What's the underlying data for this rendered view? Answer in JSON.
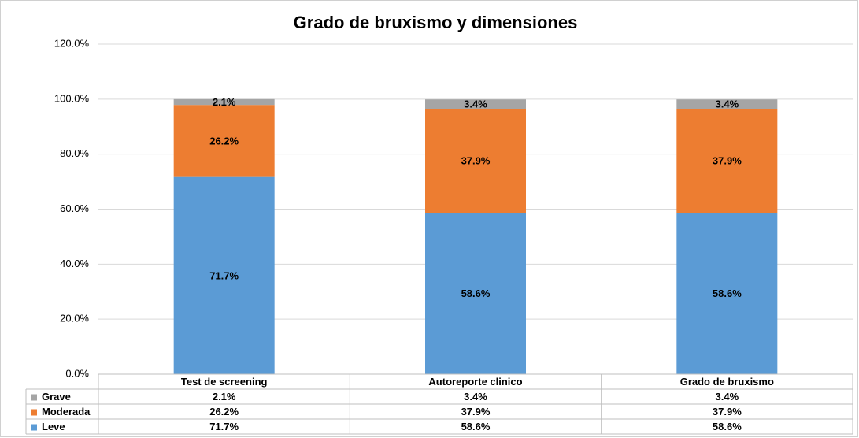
{
  "chart_data": {
    "type": "bar",
    "stacked": true,
    "title": "Grado de bruxismo y dimensiones",
    "categories": [
      "Test de screening",
      "Autoreporte clinico",
      "Grado de bruxismo"
    ],
    "series": [
      {
        "name": "Leve",
        "color": "#5b9bd5",
        "values": [
          71.7,
          58.6,
          58.6
        ],
        "value_labels": [
          "71.7%",
          "58.6%",
          "58.6%"
        ]
      },
      {
        "name": "Moderada",
        "color": "#ed7d31",
        "values": [
          26.2,
          37.9,
          37.9
        ],
        "value_labels": [
          "26.2%",
          "37.9%",
          "37.9%"
        ]
      },
      {
        "name": "Grave",
        "color": "#a5a5a5",
        "values": [
          2.1,
          3.4,
          3.4
        ],
        "value_labels": [
          "2.1%",
          "3.4%",
          "3.4%"
        ]
      }
    ],
    "ylim": [
      0,
      120
    ],
    "yticks": [
      {
        "value": 0,
        "label": "0.0%"
      },
      {
        "value": 20,
        "label": "20.0%"
      },
      {
        "value": 40,
        "label": "40.0%"
      },
      {
        "value": 60,
        "label": "60.0%"
      },
      {
        "value": 80,
        "label": "80.0%"
      },
      {
        "value": 100,
        "label": "100.0%"
      },
      {
        "value": 120,
        "label": "120.0%"
      }
    ],
    "grid": true,
    "data_table": true
  }
}
